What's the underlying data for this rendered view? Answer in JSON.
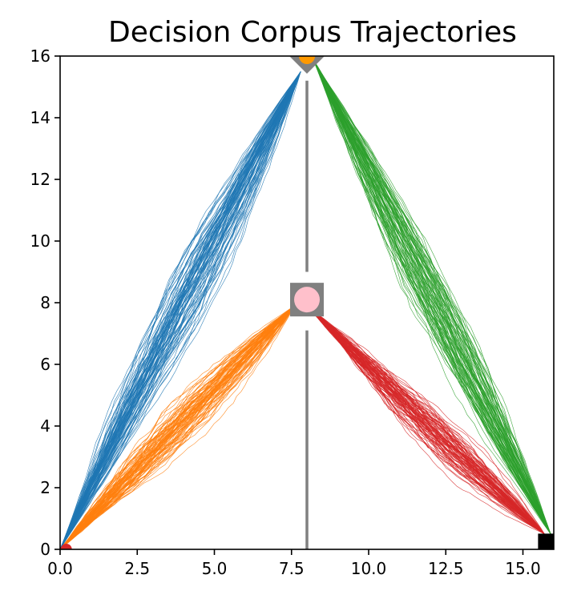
{
  "chart_data": {
    "type": "line",
    "title": "Decision Corpus Trajectories",
    "xlabel": "",
    "ylabel": "",
    "xlim": [
      0,
      16
    ],
    "ylim": [
      0,
      16
    ],
    "x_ticks": [
      0.0,
      2.5,
      5.0,
      7.5,
      10.0,
      12.5,
      15.0
    ],
    "x_tick_labels": [
      "0.0",
      "2.5",
      "5.0",
      "7.5",
      "10.0",
      "12.5",
      "15.0"
    ],
    "y_ticks": [
      0,
      2,
      4,
      6,
      8,
      10,
      12,
      14,
      16
    ],
    "y_tick_labels": [
      "0",
      "2",
      "4",
      "6",
      "8",
      "10",
      "12",
      "14",
      "16"
    ],
    "grid": false,
    "series": [
      {
        "color": "#1f77b4",
        "start": [
          0,
          0
        ],
        "end": [
          7.8,
          15.5
        ],
        "spread": 0.45,
        "count": 90
      },
      {
        "color": "#ff7f0e",
        "start": [
          0,
          0
        ],
        "end": [
          7.6,
          7.9
        ],
        "spread": 0.35,
        "count": 90
      },
      {
        "color": "#2ca02c",
        "start": [
          8.2,
          15.9
        ],
        "end": [
          15.9,
          0.5
        ],
        "spread": 0.45,
        "count": 90
      },
      {
        "color": "#d62728",
        "start": [
          8.0,
          7.9
        ],
        "end": [
          15.7,
          0.5
        ],
        "spread": 0.3,
        "count": 90
      }
    ],
    "walls": [
      {
        "color": "#808080",
        "x": 8,
        "y_from": 0,
        "y_to": 7.1
      },
      {
        "color": "#808080",
        "x": 8,
        "y_from": 9.0,
        "y_to": 15.2
      }
    ],
    "markers": [
      {
        "kind": "hub-square",
        "x": 8,
        "y": 8.1,
        "color": "#808080"
      },
      {
        "kind": "hub-circle",
        "x": 8,
        "y": 8.1,
        "color": "#ffc0cb"
      },
      {
        "kind": "top-diamond",
        "x": 8,
        "y": 16,
        "color": "#808080"
      },
      {
        "kind": "top-circle",
        "x": 8,
        "y": 16,
        "color": "#ff9900"
      },
      {
        "kind": "goal-square",
        "x": 15.75,
        "y": 0.25,
        "color": "#000000"
      },
      {
        "kind": "start-dot",
        "x": 0.2,
        "y": 0,
        "color": "#d62728"
      }
    ]
  }
}
